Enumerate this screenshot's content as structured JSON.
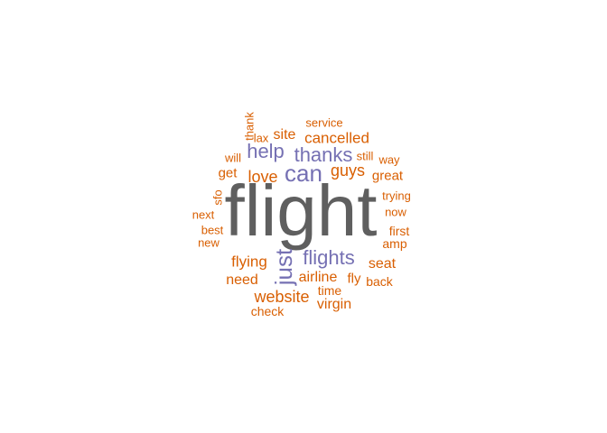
{
  "colors": {
    "dark": "#5f5f5f",
    "purple": "#7570b3",
    "orange": "#d95f02"
  },
  "words": [
    {
      "text": "flight",
      "color": "dark",
      "vertical": false
    },
    {
      "text": "just",
      "color": "purple",
      "vertical": true
    },
    {
      "text": "can",
      "color": "purple",
      "vertical": false
    },
    {
      "text": "thanks",
      "color": "purple",
      "vertical": false
    },
    {
      "text": "help",
      "color": "purple",
      "vertical": false
    },
    {
      "text": "flights",
      "color": "purple",
      "vertical": false
    },
    {
      "text": "guys",
      "color": "orange",
      "vertical": false
    },
    {
      "text": "love",
      "color": "orange",
      "vertical": false
    },
    {
      "text": "cancelled",
      "color": "orange",
      "vertical": false
    },
    {
      "text": "website",
      "color": "orange",
      "vertical": false
    },
    {
      "text": "flying",
      "color": "orange",
      "vertical": false
    },
    {
      "text": "airline",
      "color": "orange",
      "vertical": false
    },
    {
      "text": "seat",
      "color": "orange",
      "vertical": false
    },
    {
      "text": "virgin",
      "color": "orange",
      "vertical": false
    },
    {
      "text": "need",
      "color": "orange",
      "vertical": false
    },
    {
      "text": "site",
      "color": "orange",
      "vertical": false
    },
    {
      "text": "get",
      "color": "orange",
      "vertical": false
    },
    {
      "text": "fly",
      "color": "orange",
      "vertical": false
    },
    {
      "text": "great",
      "color": "orange",
      "vertical": false
    },
    {
      "text": "service",
      "color": "orange",
      "vertical": false
    },
    {
      "text": "lax",
      "color": "orange",
      "vertical": false
    },
    {
      "text": "thank",
      "color": "orange",
      "vertical": true
    },
    {
      "text": "will",
      "color": "orange",
      "vertical": false
    },
    {
      "text": "still",
      "color": "orange",
      "vertical": false
    },
    {
      "text": "way",
      "color": "orange",
      "vertical": false
    },
    {
      "text": "sfo",
      "color": "orange",
      "vertical": true
    },
    {
      "text": "trying",
      "color": "orange",
      "vertical": false
    },
    {
      "text": "now",
      "color": "orange",
      "vertical": false
    },
    {
      "text": "next",
      "color": "orange",
      "vertical": false
    },
    {
      "text": "best",
      "color": "orange",
      "vertical": false
    },
    {
      "text": "new",
      "color": "orange",
      "vertical": false
    },
    {
      "text": "first",
      "color": "orange",
      "vertical": false
    },
    {
      "text": "amp",
      "color": "orange",
      "vertical": false
    },
    {
      "text": "time",
      "color": "orange",
      "vertical": false
    },
    {
      "text": "back",
      "color": "orange",
      "vertical": false
    },
    {
      "text": "check",
      "color": "orange",
      "vertical": false
    }
  ]
}
